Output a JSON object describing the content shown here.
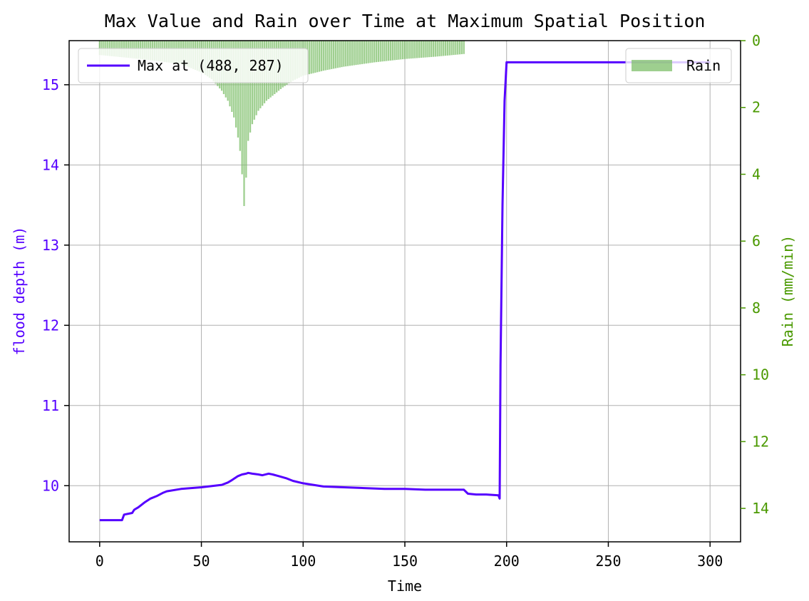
{
  "chart_data": {
    "type": "line+bar",
    "title": "Max Value and Rain over Time at Maximum Spatial Position",
    "xlabel": "Time",
    "ylabel_left": "flood depth (m)",
    "ylabel_right": "Rain (mm/min)",
    "xlim": [
      -15,
      315
    ],
    "ylim_left": [
      9.3,
      15.55
    ],
    "ylim_right": [
      15,
      0
    ],
    "right_axis_inverted": true,
    "grid": true,
    "x_ticks": [
      0,
      50,
      100,
      150,
      200,
      250,
      300
    ],
    "y_ticks_left": [
      10,
      11,
      12,
      13,
      14,
      15
    ],
    "y_ticks_right": [
      0,
      2,
      4,
      6,
      8,
      10,
      12,
      14
    ],
    "colors": {
      "depth": "#5500ff",
      "rain": "#7dbf6a",
      "right_axis": "#4a9900"
    },
    "legends": [
      {
        "label": "Max at (488, 287)",
        "series": "depth",
        "placement": "upper-left"
      },
      {
        "label": "Rain",
        "series": "rain",
        "placement": "upper-right"
      }
    ],
    "depth_series": {
      "name": "Max at (488, 287)",
      "x": [
        0,
        11,
        12,
        16,
        17,
        19,
        22,
        25,
        28,
        31,
        33,
        40,
        50,
        60,
        63,
        65,
        68,
        70,
        72,
        73,
        75,
        78,
        80,
        83,
        85,
        88,
        92,
        95,
        100,
        105,
        110,
        120,
        130,
        140,
        150,
        160,
        170,
        179,
        181,
        185,
        190,
        196,
        196.6,
        197,
        198,
        199,
        200,
        250,
        300
      ],
      "y": [
        9.57,
        9.57,
        9.64,
        9.66,
        9.7,
        9.73,
        9.79,
        9.84,
        9.87,
        9.91,
        9.93,
        9.96,
        9.98,
        10.01,
        10.04,
        10.07,
        10.12,
        10.14,
        10.15,
        10.16,
        10.15,
        10.14,
        10.13,
        10.15,
        10.14,
        10.12,
        10.09,
        10.06,
        10.03,
        10.01,
        9.99,
        9.98,
        9.97,
        9.96,
        9.96,
        9.95,
        9.95,
        9.95,
        9.9,
        9.89,
        9.89,
        9.88,
        9.84,
        11.5,
        13.5,
        14.8,
        15.28,
        15.28,
        15.28
      ]
    },
    "rain_series": {
      "name": "Rain",
      "x_start": 0,
      "x_end": 179,
      "bar_width": 1,
      "peak_x": 71,
      "peak_value": 4.95,
      "profile": [
        {
          "x": 0,
          "y": 0.43
        },
        {
          "x": 20,
          "y": 0.55
        },
        {
          "x": 40,
          "y": 0.7
        },
        {
          "x": 50,
          "y": 0.95
        },
        {
          "x": 55,
          "y": 1.15
        },
        {
          "x": 60,
          "y": 1.5
        },
        {
          "x": 63,
          "y": 1.8
        },
        {
          "x": 66,
          "y": 2.3
        },
        {
          "x": 68,
          "y": 2.9
        },
        {
          "x": 69,
          "y": 3.3
        },
        {
          "x": 70,
          "y": 4.0
        },
        {
          "x": 71,
          "y": 4.95
        },
        {
          "x": 72,
          "y": 4.1
        },
        {
          "x": 73,
          "y": 3.0
        },
        {
          "x": 75,
          "y": 2.5
        },
        {
          "x": 78,
          "y": 2.1
        },
        {
          "x": 82,
          "y": 1.8
        },
        {
          "x": 86,
          "y": 1.6
        },
        {
          "x": 90,
          "y": 1.4
        },
        {
          "x": 95,
          "y": 1.2
        },
        {
          "x": 100,
          "y": 1.05
        },
        {
          "x": 110,
          "y": 0.9
        },
        {
          "x": 120,
          "y": 0.78
        },
        {
          "x": 135,
          "y": 0.65
        },
        {
          "x": 150,
          "y": 0.55
        },
        {
          "x": 165,
          "y": 0.48
        },
        {
          "x": 179,
          "y": 0.4
        }
      ]
    }
  }
}
